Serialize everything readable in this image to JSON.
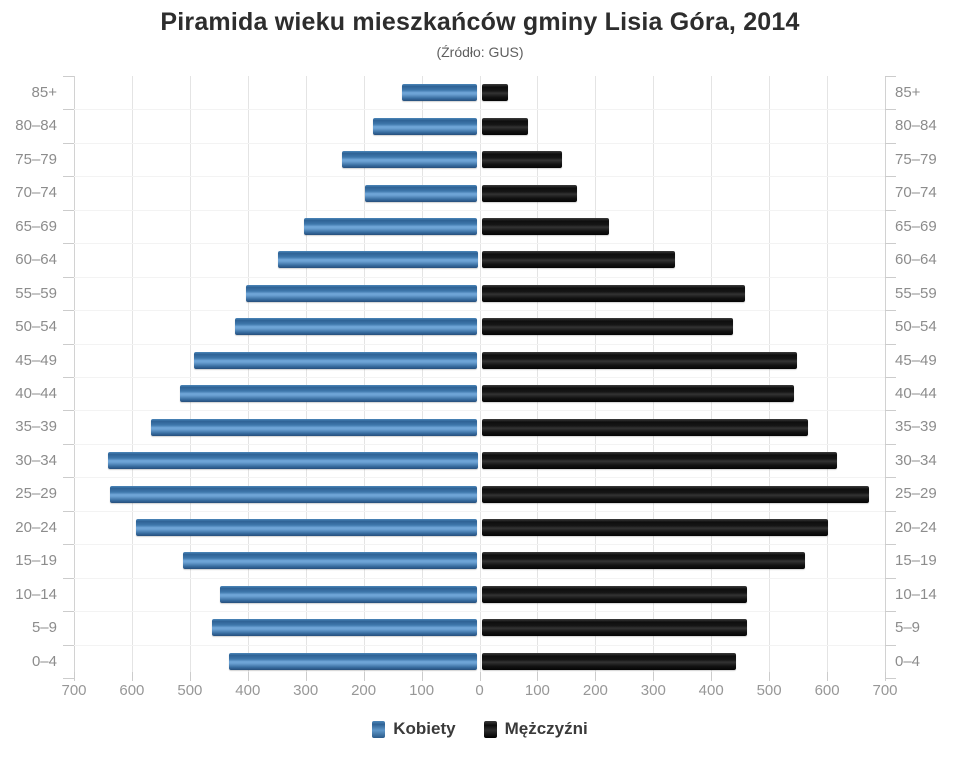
{
  "title": "Piramida wieku mieszkańców gminy Lisia Góra, 2014",
  "subtitle": "(Źródło: GUS)",
  "legend": {
    "position": "bottom",
    "items": [
      "Kobiety",
      "Mężczyźni"
    ]
  },
  "chart_data": {
    "type": "bar",
    "variant": "population-pyramid",
    "title": "Piramida wieku mieszkańców gminy Lisia Góra, 2014",
    "subtitle": "(Źródło: GUS)",
    "categories": [
      "85+",
      "80–84",
      "75–79",
      "70–74",
      "65–69",
      "60–64",
      "55–59",
      "50–54",
      "45–49",
      "40–44",
      "35–39",
      "30–34",
      "25–29",
      "20–24",
      "15–19",
      "10–14",
      "5–9",
      "0–4"
    ],
    "series": [
      {
        "name": "Kobiety",
        "side": "left",
        "color": "#4a86bb",
        "values": [
          130,
          180,
          235,
          195,
          300,
          345,
          400,
          420,
          490,
          515,
          565,
          640,
          635,
          590,
          510,
          445,
          460,
          430
        ]
      },
      {
        "name": "Mężczyźni",
        "side": "right",
        "color": "#1a1a1a",
        "values": [
          45,
          80,
          140,
          165,
          220,
          335,
          455,
          435,
          545,
          540,
          565,
          615,
          670,
          600,
          560,
          460,
          460,
          440
        ]
      }
    ],
    "x_axis": {
      "tick_labels": [
        "700",
        "600",
        "500",
        "400",
        "300",
        "200",
        "100",
        "0",
        "100",
        "200",
        "300",
        "400",
        "500",
        "600",
        "700"
      ],
      "max_each_side": 700,
      "grid": true
    },
    "y_axis": {
      "labels_on_both_sides": true
    },
    "legend_position": "bottom",
    "colors": {
      "gridline": "#e4e4e4",
      "axis_tick": "#cccccc",
      "axis_text": "#8c8c8c",
      "title_text": "#2d2d2d"
    }
  }
}
